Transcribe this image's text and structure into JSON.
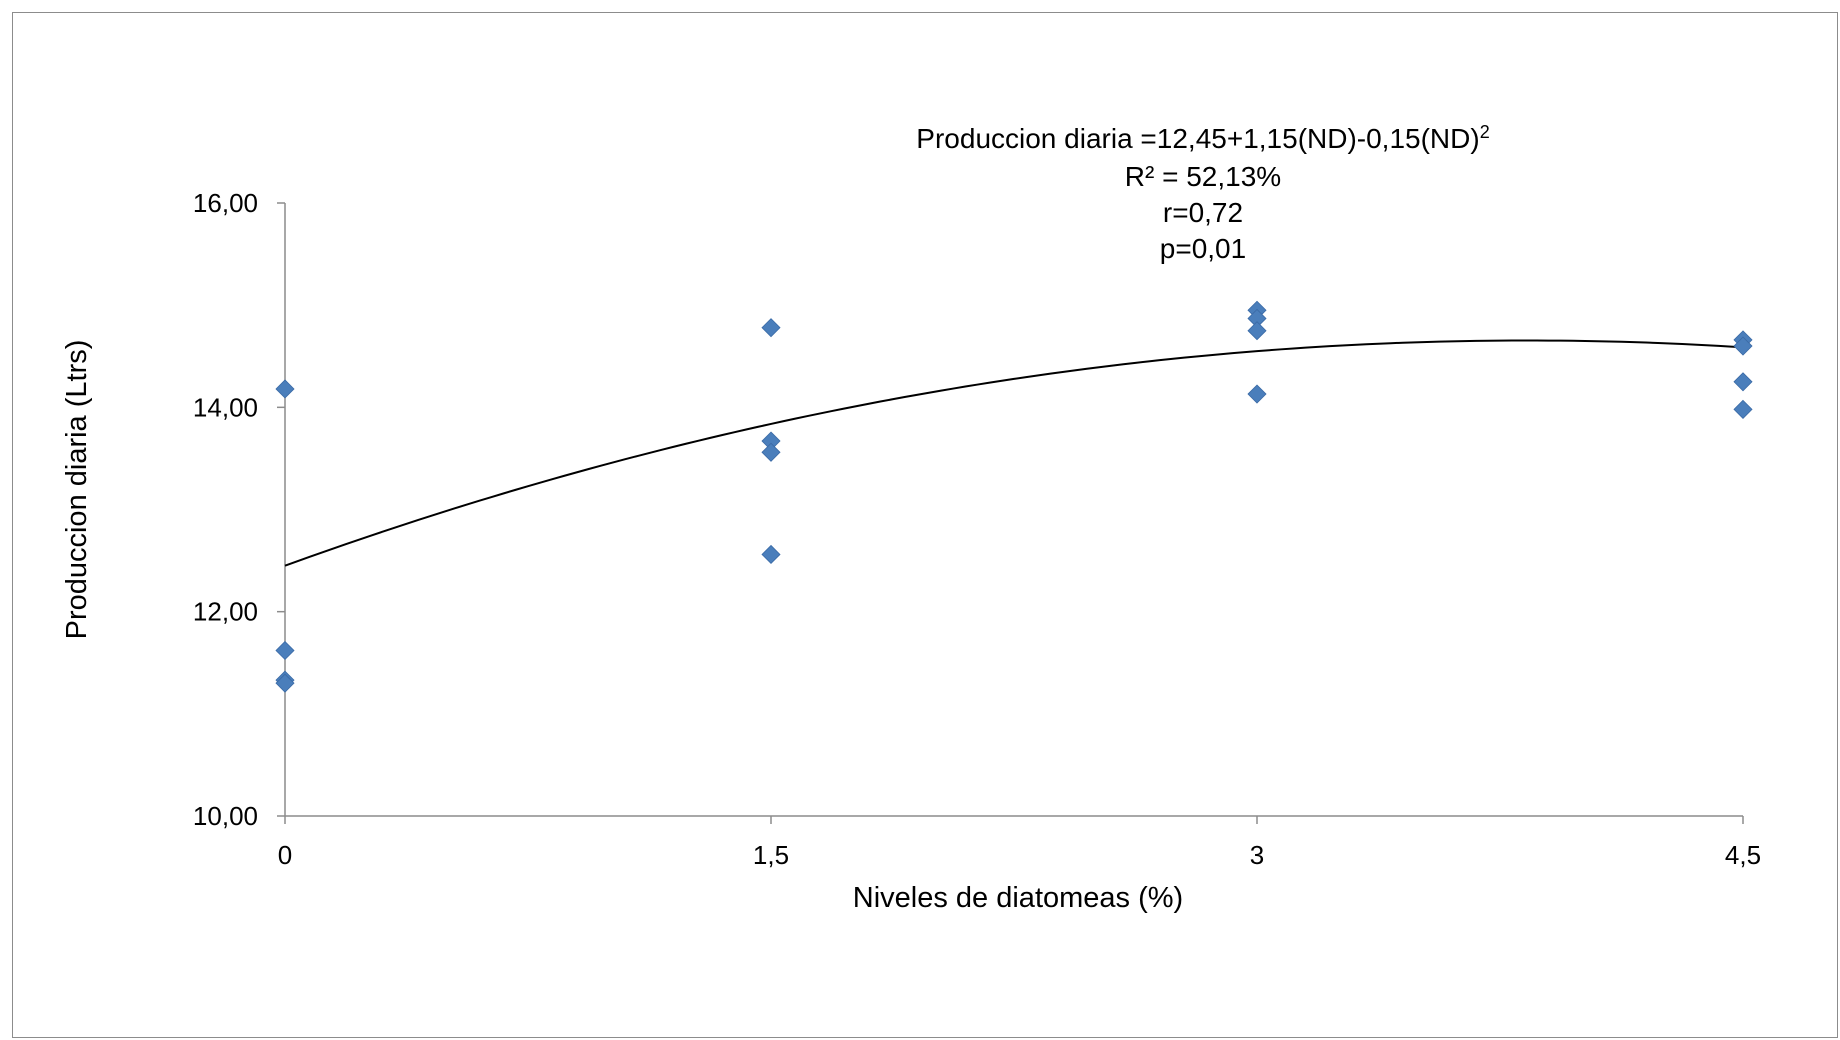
{
  "chart_data": {
    "type": "scatter",
    "title": "",
    "xlabel": "Niveles de diatomeas (%)",
    "ylabel": "Produccion diaria (Ltrs)",
    "x_categories": [
      "0",
      "1,5",
      "3",
      "4,5"
    ],
    "x_values": [
      0,
      1.5,
      3,
      4.5
    ],
    "ylim": [
      10,
      16
    ],
    "y_ticks": [
      10,
      12,
      14,
      16
    ],
    "y_tick_labels": [
      "10,00",
      "12,00",
      "14,00",
      "16,00"
    ],
    "grid": false,
    "legend": "none",
    "series": [
      {
        "marker": "diamond",
        "color": "#4a7ebb",
        "points": [
          [
            0,
            14.18
          ],
          [
            0,
            11.62
          ],
          [
            0,
            11.33
          ],
          [
            0,
            11.3
          ],
          [
            1.5,
            14.78
          ],
          [
            1.5,
            13.67
          ],
          [
            1.5,
            13.56
          ],
          [
            1.5,
            12.56
          ],
          [
            3,
            14.95
          ],
          [
            3,
            14.87
          ],
          [
            3,
            14.75
          ],
          [
            3,
            14.13
          ],
          [
            4.5,
            14.66
          ],
          [
            4.5,
            14.6
          ],
          [
            4.5,
            14.25
          ],
          [
            4.5,
            13.98
          ]
        ]
      }
    ],
    "trendline": {
      "type": "polynomial",
      "color": "#000000",
      "coefficients": [
        12.45,
        1.15,
        -0.15
      ]
    },
    "annotation": {
      "equation": "Produccion diaria =12,45+1,15(ND)-0,15(ND)",
      "equation_superscript": "2",
      "r2": "R² = 52,13%",
      "r": "r=0,72",
      "p": "p=0,01"
    }
  }
}
